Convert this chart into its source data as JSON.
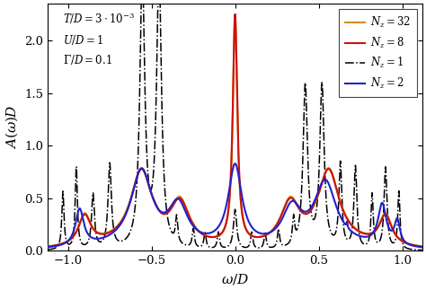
{
  "xlabel": "$\\omega/D$",
  "ylabel": "$A(\\omega)D$",
  "xlim": [
    -1.12,
    1.12
  ],
  "ylim": [
    0.0,
    2.35
  ],
  "xticks": [
    -1.0,
    -0.5,
    0.0,
    0.5,
    1.0
  ],
  "yticks": [
    0.0,
    0.5,
    1.0,
    1.5,
    2.0
  ],
  "ann1": "$T/D = 3 \\cdot 10^{-3}$",
  "ann2": "$U/D = 1$",
  "ann3": "$\\Gamma/D = 0.1$",
  "legend_labels": [
    "$N_z = 1$",
    "$N_z = 2$",
    "$N_z = 8$",
    "$N_z = 32$"
  ],
  "colors": [
    "black",
    "#2222cc",
    "#cc1111",
    "#d4900a"
  ],
  "linestyles": [
    "-.",
    "-",
    "-",
    "-"
  ],
  "linewidths": [
    1.1,
    1.5,
    1.5,
    1.5
  ],
  "bg_color": "#ffffff"
}
